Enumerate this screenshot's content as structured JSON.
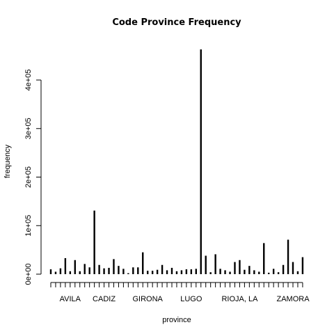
{
  "chart_data": {
    "type": "bar",
    "title": "Code Province Frequency",
    "xlabel": "province",
    "ylabel": "frequency",
    "ylim": [
      0,
      450000
    ],
    "y_ticks": [
      0,
      100000,
      200000,
      300000,
      400000
    ],
    "y_tick_labels": [
      "0e+00",
      "1e+05",
      "2e+05",
      "3e+05",
      "4e+05"
    ],
    "x_tick_count": 53,
    "x_tick_labels": [
      {
        "index": 4,
        "label": "AVILA"
      },
      {
        "index": 11,
        "label": "CADIZ"
      },
      {
        "index": 20,
        "label": "GIRONA"
      },
      {
        "index": 29,
        "label": "LUGO"
      },
      {
        "index": 39,
        "label": "RIOJA, LA"
      },
      {
        "index": 50,
        "label": "ZAMORA"
      }
    ],
    "values": [
      10000,
      5000,
      12000,
      33000,
      6000,
      29000,
      6000,
      21000,
      14000,
      131000,
      19000,
      12000,
      13000,
      31000,
      17000,
      11000,
      2000,
      14000,
      14000,
      45000,
      7000,
      7000,
      9000,
      19000,
      8000,
      13000,
      6000,
      8000,
      10000,
      10000,
      11000,
      463000,
      38000,
      4000,
      41000,
      11000,
      8000,
      5000,
      25000,
      29000,
      9000,
      17000,
      8000,
      5000,
      64000,
      3000,
      11000,
      4000,
      19000,
      71000,
      25000,
      6000,
      35000
    ]
  }
}
